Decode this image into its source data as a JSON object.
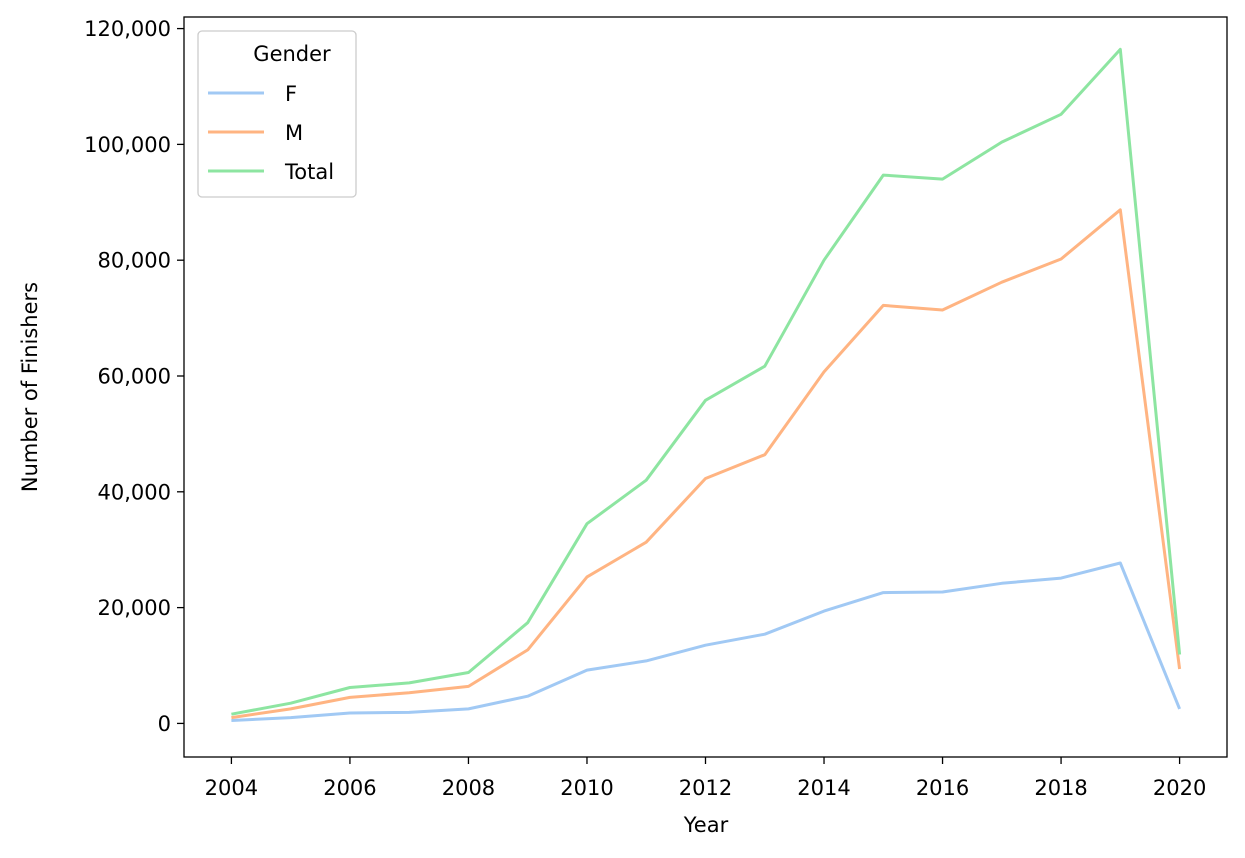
{
  "chart_data": {
    "type": "line",
    "title": "",
    "xlabel": "Year",
    "ylabel": "Number of Finishers",
    "xlim": [
      2003.2,
      2020.8
    ],
    "ylim": [
      -5800,
      122000
    ],
    "x_ticks": [
      2004,
      2006,
      2008,
      2010,
      2012,
      2014,
      2016,
      2018,
      2020
    ],
    "y_ticks": [
      0,
      20000,
      40000,
      60000,
      80000,
      100000,
      120000
    ],
    "y_tick_labels": [
      "0",
      "20,000",
      "40,000",
      "60,000",
      "80,000",
      "100,000",
      "120,000"
    ],
    "grid": false,
    "legend": {
      "title": "Gender",
      "placement": "top-left"
    },
    "x": [
      2004,
      2005,
      2006,
      2007,
      2008,
      2009,
      2010,
      2011,
      2012,
      2013,
      2014,
      2015,
      2016,
      2017,
      2018,
      2019,
      2020
    ],
    "series": [
      {
        "name": "F",
        "color": "#a1c9f4",
        "values": [
          500,
          1000,
          1800,
          1900,
          2500,
          4700,
          9200,
          10800,
          13500,
          15400,
          19400,
          22600,
          22700,
          24200,
          25100,
          27700,
          2500
        ]
      },
      {
        "name": "M",
        "color": "#ffb482",
        "values": [
          1000,
          2500,
          4500,
          5300,
          6400,
          12700,
          25300,
          31300,
          42300,
          46400,
          60700,
          72200,
          71400,
          76200,
          80200,
          88700,
          9400
        ]
      },
      {
        "name": "Total",
        "color": "#8de5a1",
        "values": [
          1600,
          3500,
          6200,
          7000,
          8800,
          17400,
          34500,
          42000,
          55800,
          61700,
          80000,
          94700,
          94000,
          100400,
          105200,
          116400,
          11900
        ]
      }
    ]
  }
}
